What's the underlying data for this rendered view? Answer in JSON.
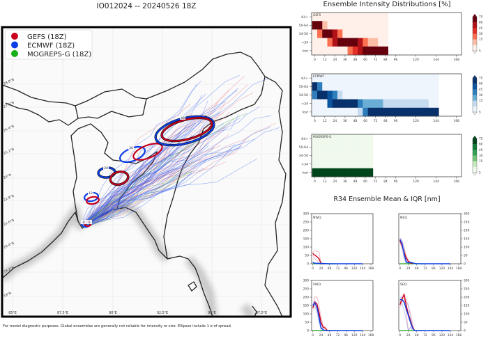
{
  "map": {
    "title": "IO012024 -- 20240526 18Z",
    "legend": [
      {
        "label": "GEFS (18Z)",
        "color": "#c8001e"
      },
      {
        "label": "ECMWF (18Z)",
        "color": "#0a3ee6"
      },
      {
        "label": "MOGREPS-G (18Z)",
        "color": "#18b018"
      }
    ],
    "lat_labels": [
      "28.8°N",
      "27.6°N",
      "26.4°N",
      "25.2°N",
      "24°N",
      "22.8°N",
      "21.6°N",
      "20.4°N",
      "19.2°N",
      "18°N"
    ],
    "lon_labels": [
      "85°E",
      "87.5°E",
      "90°E",
      "92.5°E",
      "95°E",
      "97.5°E"
    ],
    "ellipse_labels": [
      "0",
      "0",
      "12",
      "12",
      "24",
      "24",
      "36",
      "36",
      "48",
      "48"
    ],
    "footer": "For model diagnostic purposes. Global ensembles are generally not reliable for intensity or size. Ellipses include 1 σ of spread."
  },
  "chart_data": [
    {
      "type": "heatmap",
      "title": "Ensemble Intensity Distributions [%]",
      "panel_label": "GEFS",
      "colormap": "Reds",
      "rows": [
        "64+",
        "50-64",
        "34-50",
        "<34",
        "lost"
      ],
      "x_ticks": [
        0,
        12,
        24,
        36,
        48,
        60,
        72,
        84,
        96,
        120,
        144,
        168
      ],
      "colorbar_ticks": [
        5,
        15,
        30,
        45,
        60,
        75
      ],
      "hours": [
        0,
        6,
        12,
        18,
        24,
        30,
        36,
        42,
        48,
        54,
        60,
        66,
        72,
        78,
        84
      ],
      "values": {
        "64+": [
          1,
          1,
          1,
          1,
          1,
          1,
          1,
          1,
          1,
          1,
          1,
          1,
          1,
          1,
          1
        ],
        "50-64": [
          80,
          80,
          10,
          1,
          1,
          1,
          1,
          1,
          1,
          1,
          1,
          1,
          1,
          1,
          1
        ],
        "34-50": [
          3,
          20,
          80,
          80,
          45,
          20,
          1,
          1,
          1,
          1,
          1,
          1,
          1,
          1,
          1
        ],
        "<34": [
          3,
          3,
          3,
          15,
          45,
          60,
          80,
          80,
          60,
          45,
          25,
          10,
          10,
          1,
          1
        ],
        "lost": [
          1,
          1,
          1,
          1,
          1,
          1,
          1,
          15,
          35,
          50,
          80,
          80,
          80,
          80,
          80
        ]
      }
    },
    {
      "type": "heatmap",
      "panel_label": "ECMWF",
      "colormap": "Blues",
      "rows": [
        "64+",
        "50-64",
        "34-50",
        "<34",
        "lost"
      ],
      "x_ticks": [
        0,
        12,
        24,
        36,
        48,
        60,
        72,
        84,
        96,
        120,
        144,
        168
      ],
      "colorbar_ticks": [
        5,
        15,
        30,
        45,
        60,
        75
      ],
      "hours": [
        0,
        6,
        12,
        18,
        24,
        30,
        36,
        42,
        48,
        54,
        60,
        66,
        72,
        78,
        84,
        90,
        96,
        102,
        108,
        114,
        120,
        126,
        132,
        138,
        144
      ],
      "values": {
        "64+": [
          1,
          1,
          1,
          1,
          1,
          1,
          1,
          1,
          1,
          1,
          1,
          1,
          1,
          1,
          1,
          1,
          1,
          1,
          1,
          1,
          1,
          1,
          1,
          1,
          1
        ],
        "50-64": [
          60,
          30,
          1,
          1,
          1,
          1,
          1,
          1,
          1,
          1,
          1,
          1,
          1,
          1,
          1,
          1,
          1,
          1,
          1,
          1,
          1,
          1,
          1,
          1,
          1
        ],
        "34-50": [
          30,
          60,
          80,
          45,
          30,
          10,
          1,
          1,
          1,
          1,
          1,
          1,
          1,
          1,
          1,
          1,
          1,
          1,
          1,
          1,
          1,
          1,
          1,
          1,
          1
        ],
        "<34": [
          1,
          1,
          1,
          45,
          60,
          80,
          80,
          80,
          80,
          40,
          25,
          25,
          15,
          15,
          8,
          8,
          8,
          8,
          8,
          8,
          8,
          8,
          8,
          1,
          1
        ],
        "lost": [
          1,
          1,
          1,
          1,
          1,
          1,
          1,
          1,
          1,
          10,
          35,
          60,
          60,
          80,
          80,
          80,
          80,
          80,
          80,
          80,
          80,
          80,
          80,
          80,
          80
        ]
      }
    },
    {
      "type": "heatmap",
      "panel_label": "MOGREPS-G",
      "colormap": "Greens",
      "rows": [
        "64+",
        "50-64",
        "34-50",
        "<34",
        "lost"
      ],
      "x_ticks": [
        0,
        12,
        24,
        36,
        48,
        60,
        72,
        84,
        96,
        120,
        144,
        168
      ],
      "colorbar_ticks": [
        5,
        15,
        30,
        45,
        60,
        75
      ],
      "hours": [
        0,
        6,
        12,
        18,
        24,
        30,
        36,
        42,
        48,
        54,
        60,
        66
      ],
      "values": {
        "64+": [
          1,
          1,
          1,
          1,
          1,
          1,
          1,
          1,
          1,
          1,
          1,
          1
        ],
        "50-64": [
          1,
          1,
          1,
          1,
          1,
          1,
          1,
          1,
          1,
          1,
          1,
          1
        ],
        "34-50": [
          1,
          1,
          1,
          1,
          1,
          1,
          1,
          1,
          1,
          1,
          1,
          1
        ],
        "<34": [
          1,
          1,
          1,
          1,
          1,
          1,
          1,
          1,
          1,
          1,
          1,
          1
        ],
        "lost": [
          80,
          80,
          80,
          80,
          80,
          80,
          80,
          80,
          80,
          80,
          80,
          80
        ]
      }
    },
    {
      "type": "line",
      "title": "R34 Ensemble Mean & IQR [nm]",
      "x_ticks": [
        0,
        24,
        48,
        72,
        96,
        120,
        144,
        168
      ],
      "y_ticks": [
        0,
        50,
        100,
        150,
        200,
        250,
        300
      ],
      "ylim": [
        0,
        300
      ],
      "quadrants": [
        {
          "label": "NWQ",
          "gefs": {
            "x": [
              0,
              6,
              12,
              18,
              24,
              30,
              36
            ],
            "mean": [
              62,
              52,
              42,
              30,
              2,
              0,
              0
            ],
            "iqr_hi": [
              70,
              78,
              75,
              70,
              0,
              0,
              0
            ],
            "iqr_lo": [
              55,
              30,
              20,
              5,
              0,
              0,
              0
            ]
          },
          "ecmwf": {
            "x": [
              0,
              6,
              12,
              24,
              48,
              72,
              96,
              120,
              144
            ],
            "mean": [
              8,
              3,
              2,
              2,
              0,
              0,
              0,
              0,
              0
            ],
            "iqr_hi": [
              10,
              5,
              5,
              4,
              0,
              0,
              0,
              0,
              0
            ],
            "iqr_lo": [
              0,
              0,
              0,
              0,
              0,
              0,
              0,
              0,
              0
            ]
          },
          "mogreps": {
            "x": [
              0,
              66
            ],
            "mean": [
              0,
              0
            ]
          }
        },
        {
          "label": "NEQ",
          "gefs": {
            "x": [
              0,
              6,
              12,
              18,
              24,
              30,
              36
            ],
            "mean": [
              140,
              110,
              70,
              35,
              15,
              5,
              0
            ],
            "iqr_hi": [
              150,
              135,
              100,
              50,
              20,
              8,
              0
            ],
            "iqr_lo": [
              130,
              90,
              40,
              15,
              5,
              0,
              0
            ]
          },
          "ecmwf": {
            "x": [
              0,
              6,
              12,
              18,
              24,
              30,
              36,
              42,
              48,
              72,
              144
            ],
            "mean": [
              145,
              120,
              60,
              10,
              5,
              8,
              5,
              2,
              0,
              0,
              0
            ],
            "iqr_hi": [
              155,
              140,
              90,
              20,
              10,
              12,
              8,
              4,
              0,
              0,
              0
            ],
            "iqr_lo": [
              135,
              100,
              30,
              0,
              0,
              0,
              0,
              0,
              0,
              0,
              0
            ]
          },
          "mogreps": {
            "x": [
              0,
              66
            ],
            "mean": [
              0,
              0
            ]
          }
        },
        {
          "label": "SWQ",
          "gefs": {
            "x": [
              0,
              6,
              12,
              18,
              24,
              30,
              36,
              42
            ],
            "mean": [
              135,
              170,
              160,
              110,
              50,
              20,
              15,
              0
            ],
            "iqr_hi": [
              150,
              200,
              200,
              150,
              80,
              30,
              20,
              0
            ],
            "iqr_lo": [
              120,
              140,
              130,
              70,
              20,
              5,
              0,
              0
            ]
          },
          "ecmwf": {
            "x": [
              0,
              6,
              12,
              18,
              24,
              30,
              36,
              144
            ],
            "mean": [
              150,
              165,
              140,
              80,
              15,
              5,
              0,
              0
            ],
            "iqr_hi": [
              160,
              180,
              160,
              110,
              30,
              10,
              0,
              0
            ],
            "iqr_lo": [
              140,
              150,
              110,
              50,
              5,
              0,
              0,
              0
            ]
          },
          "mogreps": {
            "x": [
              0,
              66
            ],
            "mean": [
              0,
              0
            ]
          }
        },
        {
          "label": "SEQ",
          "gefs": {
            "x": [
              0,
              6,
              12,
              18,
              24,
              30,
              36,
              42
            ],
            "mean": [
              155,
              190,
              215,
              150,
              100,
              60,
              20,
              0
            ],
            "iqr_hi": [
              170,
              210,
              220,
              190,
              140,
              110,
              40,
              0
            ],
            "iqr_lo": [
              140,
              170,
              190,
              110,
              0,
              20,
              0,
              0
            ]
          },
          "ecmwf": {
            "x": [
              0,
              6,
              12,
              18,
              24,
              30,
              36,
              42,
              144
            ],
            "mean": [
              185,
              185,
              170,
              130,
              90,
              50,
              15,
              0,
              0
            ],
            "iqr_hi": [
              200,
              195,
              165,
              165,
              160,
              80,
              30,
              0,
              0
            ],
            "iqr_lo": [
              170,
              160,
              120,
              60,
              0,
              20,
              0,
              0,
              0
            ]
          },
          "mogreps": {
            "x": [
              0,
              66
            ],
            "mean": [
              0,
              0
            ]
          }
        }
      ]
    }
  ]
}
